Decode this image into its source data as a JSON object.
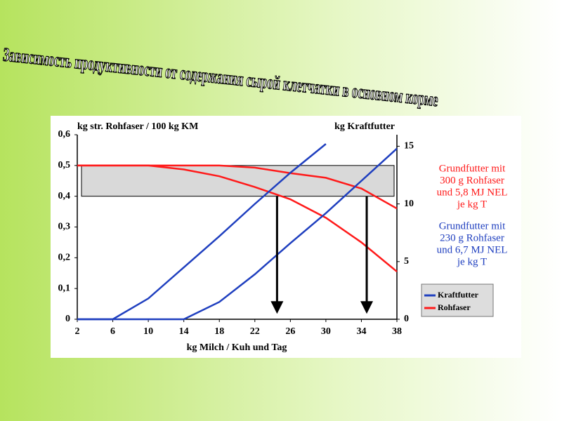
{
  "chart_data": {
    "type": "line",
    "title": "Зависимость продуктивности от содержания  сырой клетчатки в основном корме",
    "y_label": "kg str. Rohfaser / 100 kg KM",
    "y2_label": "kg Kraftfutter",
    "x_label": "kg Milch / Kuh und Tag",
    "xlim": [
      2,
      38
    ],
    "xticks": [
      2,
      6,
      10,
      14,
      18,
      22,
      26,
      30,
      34,
      38
    ],
    "ylim": [
      0,
      0.6
    ],
    "yticks": [
      {
        "value": 0,
        "label": "0"
      },
      {
        "value": 0.1,
        "label": "0,1"
      },
      {
        "value": 0.2,
        "label": "0,2"
      },
      {
        "value": 0.3,
        "label": "0,3"
      },
      {
        "value": 0.4,
        "label": "0,4"
      },
      {
        "value": 0.5,
        "label": "0,5"
      },
      {
        "value": 0.6,
        "label": "0,6"
      }
    ],
    "y2lim": [
      0,
      16
    ],
    "y2ticks": [
      0,
      5,
      10,
      15
    ],
    "band": {
      "ylim": [
        0.4,
        0.5
      ],
      "color": "#d9d9d9"
    },
    "x": [
      2,
      6,
      10,
      14,
      18,
      22,
      26,
      30,
      34,
      38
    ],
    "series": [
      {
        "name": "Rohfaser",
        "color": "#ff1a1a",
        "values": [
          0.5,
          0.5,
          0.5,
          0.5,
          0.5,
          0.493,
          0.475,
          0.46,
          0.425,
          0.36
        ]
      },
      {
        "name": "Rohfaser",
        "color": "#ff1a1a",
        "values": [
          0.5,
          0.5,
          0.5,
          0.487,
          0.465,
          0.43,
          0.39,
          0.33,
          0.25,
          0.155
        ]
      },
      {
        "name": "Kraftfutter",
        "color": "#1f3fbf",
        "axis": "y2",
        "values": [
          0,
          0,
          1.8,
          4.5,
          7.2,
          10,
          12.7,
          15.2,
          null,
          null
        ]
      },
      {
        "name": "Kraftfutter",
        "color": "#1f3fbf",
        "axis": "y2",
        "values": [
          0,
          0,
          0,
          0,
          1.5,
          3.9,
          6.6,
          9.2,
          12,
          14.8
        ]
      }
    ],
    "arrows": [
      {
        "x": 24.5,
        "from": 0.4,
        "to": 0.02
      },
      {
        "x": 34.6,
        "from": 0.4,
        "to": 0.02
      }
    ],
    "annotations": [
      {
        "color": "#ff1a1a",
        "lines": [
          "Grundfutter mit",
          "300 g Rohfaser",
          "und 5,8 MJ NEL",
          "je kg T"
        ]
      },
      {
        "color": "#1f3fbf",
        "lines": [
          "Grundfutter mit",
          "230 g Rohfaser",
          "und 6,7 MJ NEL",
          "je kg T"
        ]
      }
    ]
  }
}
